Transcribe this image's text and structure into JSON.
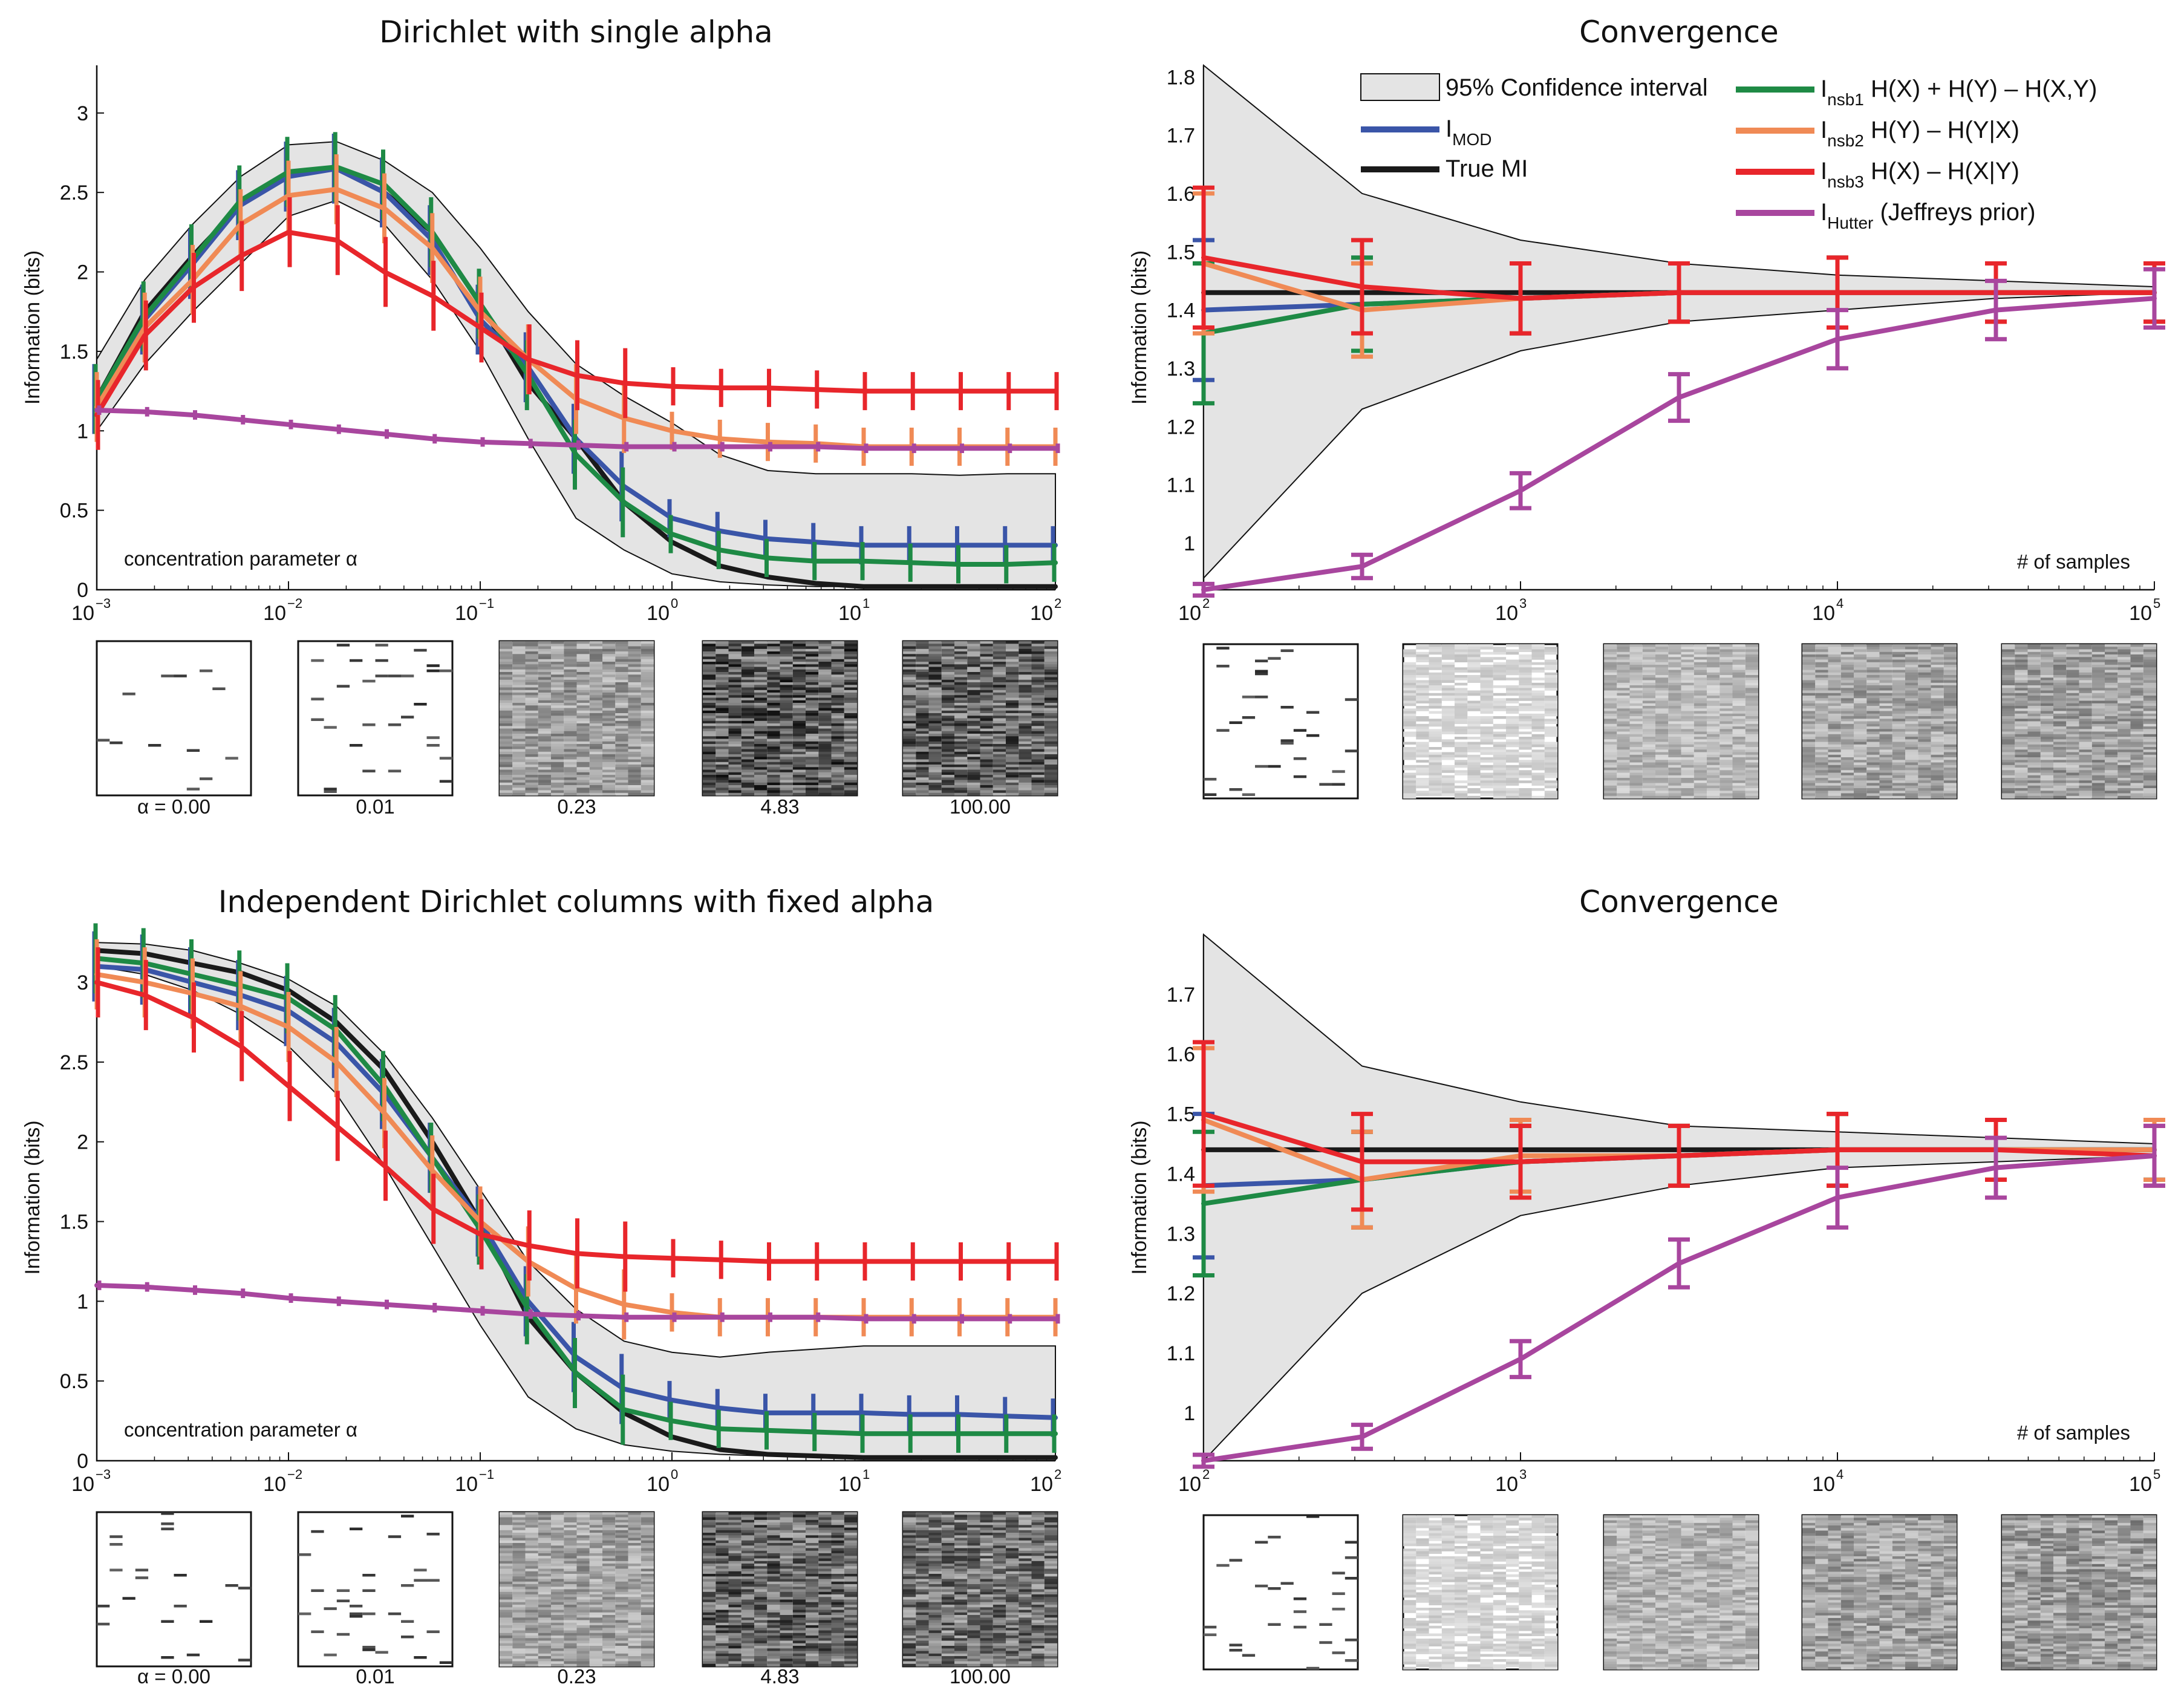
{
  "chart_data": [
    {
      "id": "tl",
      "type": "line",
      "xscale": "log",
      "title": "Dirichlet with single alpha",
      "ylabel": "Information (bits)",
      "annotation": "concentration parameter α",
      "xlim": [
        -3,
        2
      ],
      "ylim": [
        0,
        3.3
      ],
      "yticks": [
        "0",
        "0.5",
        "1",
        "1.5",
        "2",
        "2.5",
        "3"
      ],
      "xticks": [
        {
          "base": "10",
          "exp": "−3"
        },
        {
          "base": "10",
          "exp": "−2"
        },
        {
          "base": "10",
          "exp": "−1"
        },
        {
          "base": "10",
          "exp": "0"
        },
        {
          "base": "10",
          "exp": "1"
        },
        {
          "base": "10",
          "exp": "2"
        }
      ],
      "log10_x": [
        -3,
        -2.75,
        -2.5,
        -2.25,
        -2,
        -1.75,
        -1.5,
        -1.25,
        -1,
        -0.75,
        -0.5,
        -0.25,
        0,
        0.25,
        0.5,
        0.75,
        1,
        1.25,
        1.5,
        1.75,
        2
      ],
      "ci_upper": [
        1.45,
        1.95,
        2.3,
        2.6,
        2.8,
        2.82,
        2.7,
        2.5,
        2.15,
        1.75,
        1.42,
        1.22,
        1.05,
        0.85,
        0.75,
        0.73,
        0.73,
        0.73,
        0.72,
        0.73,
        0.73
      ],
      "ci_lower": [
        1.0,
        1.42,
        1.75,
        2.05,
        2.35,
        2.45,
        2.3,
        1.95,
        1.5,
        0.95,
        0.45,
        0.25,
        0.1,
        0.05,
        0.03,
        0.02,
        0.02,
        0.02,
        0.02,
        0.02,
        0.02
      ],
      "series": [
        {
          "name": "True MI",
          "color": "#1a1a1a",
          "values": [
            1.2,
            1.75,
            2.1,
            2.42,
            2.62,
            2.65,
            2.5,
            2.25,
            1.8,
            1.3,
            0.95,
            0.55,
            0.3,
            0.15,
            0.08,
            0.04,
            0.02,
            0.02,
            0.02,
            0.02,
            0.02
          ]
        },
        {
          "name": "I_MOD",
          "color": "#3a55a8",
          "values": [
            1.2,
            1.7,
            2.05,
            2.42,
            2.6,
            2.65,
            2.5,
            2.2,
            1.7,
            1.4,
            0.95,
            0.65,
            0.45,
            0.37,
            0.32,
            0.3,
            0.28,
            0.28,
            0.28,
            0.28,
            0.28
          ]
        },
        {
          "name": "I_nsb1",
          "color": "#1e8a45",
          "values": [
            1.2,
            1.72,
            2.08,
            2.45,
            2.63,
            2.66,
            2.55,
            2.25,
            1.8,
            1.35,
            0.85,
            0.55,
            0.35,
            0.25,
            0.2,
            0.18,
            0.18,
            0.17,
            0.16,
            0.16,
            0.17
          ]
        },
        {
          "name": "I_nsb2",
          "color": "#f08a55",
          "values": [
            1.15,
            1.65,
            1.95,
            2.3,
            2.48,
            2.52,
            2.4,
            2.15,
            1.75,
            1.45,
            1.2,
            1.08,
            1.0,
            0.95,
            0.93,
            0.92,
            0.9,
            0.9,
            0.9,
            0.9,
            0.9
          ]
        },
        {
          "name": "I_nsb3",
          "color": "#e8262b",
          "values": [
            1.1,
            1.6,
            1.9,
            2.1,
            2.25,
            2.2,
            2.0,
            1.85,
            1.65,
            1.45,
            1.35,
            1.3,
            1.28,
            1.27,
            1.27,
            1.26,
            1.25,
            1.25,
            1.25,
            1.25,
            1.25
          ]
        },
        {
          "name": "I_Hutter",
          "color": "#a8469e",
          "values": [
            1.13,
            1.12,
            1.1,
            1.07,
            1.04,
            1.01,
            0.98,
            0.95,
            0.93,
            0.92,
            0.91,
            0.9,
            0.9,
            0.9,
            0.9,
            0.9,
            0.89,
            0.89,
            0.89,
            0.89,
            0.89
          ]
        }
      ],
      "thumb_labels": [
        "α = 0.00",
        "0.01",
        "0.23",
        "4.83",
        "100.00"
      ],
      "thumb_grey": [
        0.0,
        0.12,
        0.42,
        0.7,
        0.66
      ]
    },
    {
      "id": "tr",
      "type": "line",
      "xscale": "log",
      "title": "Convergence",
      "ylabel": "Information (bits)",
      "annotation": "# of samples",
      "xlim": [
        2,
        5
      ],
      "ylim": [
        0.92,
        1.82
      ],
      "yticks": [
        "1",
        "1.1",
        "1.2",
        "1.3",
        "1.4",
        "1.5",
        "1.6",
        "1.7",
        "1.8"
      ],
      "xticks": [
        {
          "base": "10",
          "exp": "2"
        },
        {
          "base": "10",
          "exp": "3"
        },
        {
          "base": "10",
          "exp": "4"
        },
        {
          "base": "10",
          "exp": "5"
        }
      ],
      "log10_x": [
        2,
        2.5,
        3,
        3.5,
        4,
        4.5,
        5
      ],
      "ci_upper": [
        1.82,
        1.6,
        1.52,
        1.48,
        1.46,
        1.45,
        1.44
      ],
      "ci_lower": [
        0.94,
        1.23,
        1.33,
        1.38,
        1.4,
        1.42,
        1.43
      ],
      "series": [
        {
          "name": "True MI",
          "color": "#1a1a1a",
          "values": [
            1.43,
            1.43,
            1.43,
            1.43,
            1.43,
            1.43,
            1.43
          ]
        },
        {
          "name": "I_MOD",
          "color": "#3a55a8",
          "values": [
            1.4,
            1.41,
            1.42,
            1.43,
            1.43,
            1.43,
            1.43
          ]
        },
        {
          "name": "I_nsb1",
          "color": "#1e8a45",
          "values": [
            1.36,
            1.41,
            1.42,
            1.43,
            1.43,
            1.43,
            1.43
          ]
        },
        {
          "name": "I_nsb2",
          "color": "#f08a55",
          "values": [
            1.48,
            1.4,
            1.42,
            1.43,
            1.43,
            1.43,
            1.43
          ]
        },
        {
          "name": "I_nsb3",
          "color": "#e8262b",
          "values": [
            1.49,
            1.44,
            1.42,
            1.43,
            1.43,
            1.43,
            1.43
          ]
        },
        {
          "name": "I_Hutter",
          "color": "#a8469e",
          "values": [
            0.92,
            0.96,
            1.09,
            1.25,
            1.35,
            1.4,
            1.42
          ]
        }
      ],
      "legend": [
        {
          "kind": "patch",
          "text": "95% Confidence interval"
        },
        {
          "kind": "line",
          "color": "#3a55a8",
          "main": "I",
          "sub": "MOD",
          "tail": ""
        },
        {
          "kind": "line",
          "color": "#1a1a1a",
          "main": "True MI",
          "sub": "",
          "tail": ""
        },
        {
          "kind": "line",
          "color": "#1e8a45",
          "main": "I",
          "sub": "nsb1",
          "tail": " H(X) + H(Y) – H(X,Y)"
        },
        {
          "kind": "line",
          "color": "#f08a55",
          "main": "I",
          "sub": "nsb2",
          "tail": " H(Y) – H(Y|X)"
        },
        {
          "kind": "line",
          "color": "#e8262b",
          "main": "I",
          "sub": "nsb3",
          "tail": " H(X) – H(X|Y)"
        },
        {
          "kind": "line",
          "color": "#a8469e",
          "main": "I",
          "sub": "Hutter",
          "tail": " (Jeffreys prior)"
        }
      ],
      "thumb_labels": [],
      "thumb_grey": [
        0.08,
        0.18,
        0.3,
        0.38,
        0.4
      ]
    },
    {
      "id": "bl",
      "type": "line",
      "xscale": "log",
      "title": "Independent Dirichlet columns with fixed alpha",
      "ylabel": "Information (bits)",
      "annotation": "concentration parameter α",
      "xlim": [
        -3,
        2
      ],
      "ylim": [
        0,
        3.3
      ],
      "yticks": [
        "0",
        "0.5",
        "1",
        "1.5",
        "2",
        "2.5",
        "3"
      ],
      "xticks": [
        {
          "base": "10",
          "exp": "−3"
        },
        {
          "base": "10",
          "exp": "−2"
        },
        {
          "base": "10",
          "exp": "−1"
        },
        {
          "base": "10",
          "exp": "0"
        },
        {
          "base": "10",
          "exp": "1"
        },
        {
          "base": "10",
          "exp": "2"
        }
      ],
      "log10_x": [
        -3,
        -2.75,
        -2.5,
        -2.25,
        -2,
        -1.75,
        -1.5,
        -1.25,
        -1,
        -0.75,
        -0.5,
        -0.25,
        0,
        0.25,
        0.5,
        0.75,
        1,
        1.25,
        1.5,
        1.75,
        2
      ],
      "ci_upper": [
        3.25,
        3.24,
        3.2,
        3.12,
        3.02,
        2.85,
        2.55,
        2.15,
        1.7,
        1.25,
        0.95,
        0.75,
        0.68,
        0.65,
        0.68,
        0.7,
        0.72,
        0.72,
        0.72,
        0.72,
        0.72
      ],
      "ci_lower": [
        3.1,
        3.05,
        2.95,
        2.8,
        2.6,
        2.3,
        1.85,
        1.35,
        0.85,
        0.4,
        0.2,
        0.1,
        0.06,
        0.04,
        0.03,
        0.03,
        0.02,
        0.02,
        0.02,
        0.02,
        0.02
      ],
      "series": [
        {
          "name": "True MI",
          "color": "#1a1a1a",
          "values": [
            3.2,
            3.18,
            3.12,
            3.06,
            2.95,
            2.75,
            2.45,
            2.0,
            1.5,
            0.9,
            0.55,
            0.3,
            0.15,
            0.07,
            0.04,
            0.03,
            0.02,
            0.02,
            0.02,
            0.02,
            0.02
          ]
        },
        {
          "name": "I_MOD",
          "color": "#3a55a8",
          "values": [
            3.1,
            3.08,
            3.0,
            2.92,
            2.82,
            2.62,
            2.3,
            1.9,
            1.5,
            1.0,
            0.65,
            0.45,
            0.38,
            0.33,
            0.3,
            0.3,
            0.3,
            0.29,
            0.29,
            0.28,
            0.27
          ]
        },
        {
          "name": "I_nsb1",
          "color": "#1e8a45",
          "values": [
            3.15,
            3.12,
            3.05,
            2.98,
            2.9,
            2.7,
            2.35,
            1.9,
            1.45,
            0.95,
            0.55,
            0.32,
            0.25,
            0.2,
            0.19,
            0.18,
            0.17,
            0.17,
            0.17,
            0.17,
            0.17
          ]
        },
        {
          "name": "I_nsb2",
          "color": "#f08a55",
          "values": [
            3.05,
            3.0,
            2.93,
            2.85,
            2.72,
            2.5,
            2.18,
            1.82,
            1.5,
            1.25,
            1.08,
            0.98,
            0.93,
            0.9,
            0.9,
            0.9,
            0.9,
            0.9,
            0.9,
            0.9,
            0.9
          ]
        },
        {
          "name": "I_nsb3",
          "color": "#e8262b",
          "values": [
            3.0,
            2.92,
            2.78,
            2.6,
            2.35,
            2.1,
            1.85,
            1.58,
            1.42,
            1.35,
            1.3,
            1.28,
            1.27,
            1.26,
            1.25,
            1.25,
            1.25,
            1.25,
            1.25,
            1.25,
            1.25
          ]
        },
        {
          "name": "I_Hutter",
          "color": "#a8469e",
          "values": [
            1.1,
            1.09,
            1.07,
            1.05,
            1.02,
            1.0,
            0.98,
            0.96,
            0.94,
            0.92,
            0.91,
            0.9,
            0.9,
            0.9,
            0.9,
            0.9,
            0.89,
            0.89,
            0.89,
            0.89,
            0.89
          ]
        }
      ],
      "thumb_labels": [
        "α = 0.00",
        "0.01",
        "0.23",
        "4.83",
        "100.00"
      ],
      "thumb_grey": [
        0.05,
        0.12,
        0.4,
        0.65,
        0.6
      ]
    },
    {
      "id": "br",
      "type": "line",
      "xscale": "log",
      "title": "Convergence",
      "ylabel": "Information (bits)",
      "annotation": "# of samples",
      "xlim": [
        2,
        5
      ],
      "ylim": [
        0.92,
        1.8
      ],
      "yticks": [
        "1",
        "1.1",
        "1.2",
        "1.3",
        "1.4",
        "1.5",
        "1.6",
        "1.7"
      ],
      "xticks": [
        {
          "base": "10",
          "exp": "2"
        },
        {
          "base": "10",
          "exp": "3"
        },
        {
          "base": "10",
          "exp": "4"
        },
        {
          "base": "10",
          "exp": "5"
        }
      ],
      "log10_x": [
        2,
        2.5,
        3,
        3.5,
        4,
        4.5,
        5
      ],
      "ci_upper": [
        1.8,
        1.58,
        1.52,
        1.48,
        1.47,
        1.46,
        1.45
      ],
      "ci_lower": [
        0.92,
        1.2,
        1.33,
        1.38,
        1.41,
        1.42,
        1.43
      ],
      "series": [
        {
          "name": "True MI",
          "color": "#1a1a1a",
          "values": [
            1.44,
            1.44,
            1.44,
            1.44,
            1.44,
            1.44,
            1.44
          ]
        },
        {
          "name": "I_MOD",
          "color": "#3a55a8",
          "values": [
            1.38,
            1.39,
            1.42,
            1.43,
            1.44,
            1.44,
            1.44
          ]
        },
        {
          "name": "I_nsb1",
          "color": "#1e8a45",
          "values": [
            1.35,
            1.39,
            1.42,
            1.43,
            1.44,
            1.44,
            1.44
          ]
        },
        {
          "name": "I_nsb2",
          "color": "#f08a55",
          "values": [
            1.49,
            1.39,
            1.43,
            1.43,
            1.44,
            1.44,
            1.44
          ]
        },
        {
          "name": "I_nsb3",
          "color": "#e8262b",
          "values": [
            1.5,
            1.42,
            1.42,
            1.43,
            1.44,
            1.44,
            1.43
          ]
        },
        {
          "name": "I_Hutter",
          "color": "#a8469e",
          "values": [
            0.92,
            0.96,
            1.09,
            1.25,
            1.36,
            1.41,
            1.43
          ]
        }
      ],
      "thumb_labels": [],
      "thumb_grey": [
        0.08,
        0.18,
        0.32,
        0.4,
        0.42
      ]
    }
  ]
}
